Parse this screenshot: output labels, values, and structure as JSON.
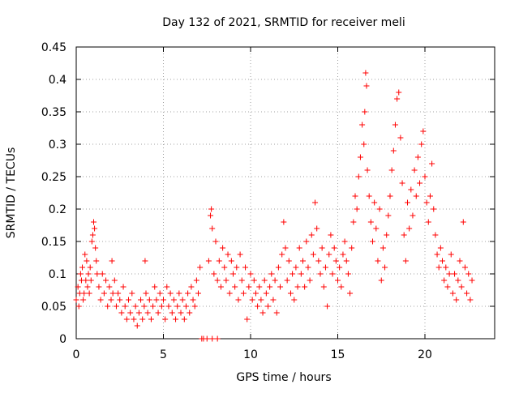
{
  "chart_data": {
    "type": "scatter",
    "title": "Day 132 of 2021, SRMTID for receiver meli",
    "xlabel": "GPS time / hours",
    "ylabel": "SRMTID / TECUs",
    "xlim": [
      0,
      24
    ],
    "ylim": [
      0,
      0.45
    ],
    "x_ticks": [
      0,
      5,
      10,
      15,
      20
    ],
    "x_tick_labels": [
      "0",
      "5",
      "10",
      "15",
      "20"
    ],
    "y_ticks": [
      0,
      0.05,
      0.1,
      0.15,
      0.2,
      0.25,
      0.3,
      0.35,
      0.4,
      0.45
    ],
    "y_tick_labels": [
      "0",
      "0.05",
      "0.1",
      "0.15",
      "0.2",
      "0.25",
      "0.3",
      "0.35",
      "0.4",
      "0.45"
    ],
    "grid": true,
    "marker": "plus",
    "series": [
      {
        "name": "SRMTID",
        "color": "#ff0000",
        "points": [
          [
            0.0,
            0.06
          ],
          [
            0.1,
            0.08
          ],
          [
            0.15,
            0.05
          ],
          [
            0.2,
            0.07
          ],
          [
            0.25,
            0.1
          ],
          [
            0.3,
            0.09
          ],
          [
            0.35,
            0.11
          ],
          [
            0.4,
            0.06
          ],
          [
            0.45,
            0.07
          ],
          [
            0.5,
            0.13
          ],
          [
            0.55,
            0.09
          ],
          [
            0.6,
            0.12
          ],
          [
            0.65,
            0.08
          ],
          [
            0.7,
            0.1
          ],
          [
            0.75,
            0.07
          ],
          [
            0.8,
            0.11
          ],
          [
            0.85,
            0.09
          ],
          [
            0.9,
            0.15
          ],
          [
            0.95,
            0.16
          ],
          [
            1.0,
            0.18
          ],
          [
            1.05,
            0.17
          ],
          [
            1.1,
            0.14
          ],
          [
            1.15,
            0.12
          ],
          [
            1.2,
            0.1
          ],
          [
            1.3,
            0.08
          ],
          [
            1.4,
            0.06
          ],
          [
            1.5,
            0.1
          ],
          [
            1.6,
            0.07
          ],
          [
            1.7,
            0.09
          ],
          [
            1.8,
            0.05
          ],
          [
            1.9,
            0.08
          ],
          [
            2.0,
            0.06
          ],
          [
            2.05,
            0.12
          ],
          [
            2.1,
            0.07
          ],
          [
            2.2,
            0.09
          ],
          [
            2.3,
            0.05
          ],
          [
            2.4,
            0.07
          ],
          [
            2.5,
            0.06
          ],
          [
            2.6,
            0.04
          ],
          [
            2.7,
            0.08
          ],
          [
            2.8,
            0.05
          ],
          [
            2.9,
            0.03
          ],
          [
            3.0,
            0.06
          ],
          [
            3.1,
            0.04
          ],
          [
            3.2,
            0.07
          ],
          [
            3.3,
            0.03
          ],
          [
            3.4,
            0.05
          ],
          [
            3.5,
            0.02
          ],
          [
            3.6,
            0.04
          ],
          [
            3.7,
            0.06
          ],
          [
            3.8,
            0.03
          ],
          [
            3.9,
            0.05
          ],
          [
            3.95,
            0.12
          ],
          [
            4.0,
            0.07
          ],
          [
            4.1,
            0.04
          ],
          [
            4.2,
            0.06
          ],
          [
            4.3,
            0.03
          ],
          [
            4.4,
            0.05
          ],
          [
            4.5,
            0.08
          ],
          [
            4.6,
            0.06
          ],
          [
            4.7,
            0.04
          ],
          [
            4.8,
            0.07
          ],
          [
            4.9,
            0.05
          ],
          [
            5.0,
            0.06
          ],
          [
            5.1,
            0.03
          ],
          [
            5.2,
            0.08
          ],
          [
            5.3,
            0.05
          ],
          [
            5.4,
            0.07
          ],
          [
            5.5,
            0.04
          ],
          [
            5.6,
            0.06
          ],
          [
            5.7,
            0.03
          ],
          [
            5.8,
            0.05
          ],
          [
            5.9,
            0.07
          ],
          [
            6.0,
            0.04
          ],
          [
            6.1,
            0.06
          ],
          [
            6.2,
            0.03
          ],
          [
            6.3,
            0.05
          ],
          [
            6.4,
            0.07
          ],
          [
            6.5,
            0.04
          ],
          [
            6.6,
            0.08
          ],
          [
            6.7,
            0.06
          ],
          [
            6.8,
            0.05
          ],
          [
            6.9,
            0.09
          ],
          [
            7.0,
            0.07
          ],
          [
            7.1,
            0.11
          ],
          [
            7.2,
            0.0
          ],
          [
            7.3,
            0.0
          ],
          [
            7.5,
            0.0
          ],
          [
            7.8,
            0.0
          ],
          [
            8.1,
            0.0
          ],
          [
            7.6,
            0.12
          ],
          [
            7.7,
            0.19
          ],
          [
            7.75,
            0.2
          ],
          [
            7.8,
            0.17
          ],
          [
            7.9,
            0.1
          ],
          [
            8.0,
            0.15
          ],
          [
            8.1,
            0.09
          ],
          [
            8.2,
            0.12
          ],
          [
            8.3,
            0.08
          ],
          [
            8.4,
            0.14
          ],
          [
            8.5,
            0.11
          ],
          [
            8.6,
            0.09
          ],
          [
            8.7,
            0.13
          ],
          [
            8.8,
            0.07
          ],
          [
            8.9,
            0.12
          ],
          [
            9.0,
            0.1
          ],
          [
            9.1,
            0.08
          ],
          [
            9.2,
            0.11
          ],
          [
            9.3,
            0.06
          ],
          [
            9.4,
            0.13
          ],
          [
            9.5,
            0.09
          ],
          [
            9.6,
            0.07
          ],
          [
            9.7,
            0.11
          ],
          [
            9.8,
            0.03
          ],
          [
            9.9,
            0.08
          ],
          [
            10.0,
            0.1
          ],
          [
            10.1,
            0.06
          ],
          [
            10.2,
            0.09
          ],
          [
            10.3,
            0.07
          ],
          [
            10.4,
            0.05
          ],
          [
            10.5,
            0.08
          ],
          [
            10.6,
            0.06
          ],
          [
            10.7,
            0.04
          ],
          [
            10.8,
            0.09
          ],
          [
            10.9,
            0.07
          ],
          [
            11.0,
            0.05
          ],
          [
            11.1,
            0.08
          ],
          [
            11.2,
            0.1
          ],
          [
            11.3,
            0.06
          ],
          [
            11.4,
            0.09
          ],
          [
            11.5,
            0.04
          ],
          [
            11.6,
            0.11
          ],
          [
            11.7,
            0.08
          ],
          [
            11.8,
            0.13
          ],
          [
            11.9,
            0.18
          ],
          [
            12.0,
            0.14
          ],
          [
            12.1,
            0.09
          ],
          [
            12.2,
            0.12
          ],
          [
            12.3,
            0.07
          ],
          [
            12.4,
            0.1
          ],
          [
            12.5,
            0.06
          ],
          [
            12.6,
            0.11
          ],
          [
            12.7,
            0.08
          ],
          [
            12.8,
            0.14
          ],
          [
            12.9,
            0.1
          ],
          [
            13.0,
            0.12
          ],
          [
            13.1,
            0.08
          ],
          [
            13.2,
            0.15
          ],
          [
            13.3,
            0.11
          ],
          [
            13.4,
            0.09
          ],
          [
            13.5,
            0.16
          ],
          [
            13.6,
            0.13
          ],
          [
            13.7,
            0.21
          ],
          [
            13.8,
            0.17
          ],
          [
            13.9,
            0.12
          ],
          [
            14.0,
            0.1
          ],
          [
            14.1,
            0.14
          ],
          [
            14.2,
            0.08
          ],
          [
            14.3,
            0.11
          ],
          [
            14.4,
            0.05
          ],
          [
            14.5,
            0.13
          ],
          [
            14.6,
            0.16
          ],
          [
            14.7,
            0.1
          ],
          [
            14.8,
            0.14
          ],
          [
            14.9,
            0.12
          ],
          [
            15.0,
            0.09
          ],
          [
            15.1,
            0.11
          ],
          [
            15.2,
            0.08
          ],
          [
            15.3,
            0.13
          ],
          [
            15.4,
            0.15
          ],
          [
            15.5,
            0.12
          ],
          [
            15.6,
            0.1
          ],
          [
            15.7,
            0.07
          ],
          [
            15.8,
            0.14
          ],
          [
            15.9,
            0.18
          ],
          [
            16.0,
            0.22
          ],
          [
            16.1,
            0.2
          ],
          [
            16.2,
            0.25
          ],
          [
            16.3,
            0.28
          ],
          [
            16.4,
            0.33
          ],
          [
            16.5,
            0.3
          ],
          [
            16.55,
            0.35
          ],
          [
            16.6,
            0.41
          ],
          [
            16.65,
            0.39
          ],
          [
            16.7,
            0.26
          ],
          [
            16.8,
            0.22
          ],
          [
            16.9,
            0.18
          ],
          [
            17.0,
            0.15
          ],
          [
            17.1,
            0.21
          ],
          [
            17.2,
            0.17
          ],
          [
            17.3,
            0.12
          ],
          [
            17.4,
            0.2
          ],
          [
            17.5,
            0.09
          ],
          [
            17.6,
            0.14
          ],
          [
            17.7,
            0.11
          ],
          [
            17.8,
            0.16
          ],
          [
            17.9,
            0.19
          ],
          [
            18.0,
            0.22
          ],
          [
            18.1,
            0.26
          ],
          [
            18.2,
            0.29
          ],
          [
            18.3,
            0.33
          ],
          [
            18.4,
            0.37
          ],
          [
            18.5,
            0.38
          ],
          [
            18.6,
            0.31
          ],
          [
            18.7,
            0.24
          ],
          [
            18.8,
            0.16
          ],
          [
            18.9,
            0.12
          ],
          [
            19.0,
            0.21
          ],
          [
            19.1,
            0.17
          ],
          [
            19.2,
            0.23
          ],
          [
            19.3,
            0.19
          ],
          [
            19.4,
            0.26
          ],
          [
            19.5,
            0.22
          ],
          [
            19.6,
            0.28
          ],
          [
            19.7,
            0.24
          ],
          [
            19.8,
            0.3
          ],
          [
            19.9,
            0.32
          ],
          [
            20.0,
            0.25
          ],
          [
            20.1,
            0.21
          ],
          [
            20.2,
            0.18
          ],
          [
            20.3,
            0.22
          ],
          [
            20.4,
            0.27
          ],
          [
            20.5,
            0.2
          ],
          [
            20.6,
            0.16
          ],
          [
            20.7,
            0.13
          ],
          [
            20.8,
            0.11
          ],
          [
            20.9,
            0.14
          ],
          [
            21.0,
            0.12
          ],
          [
            21.1,
            0.09
          ],
          [
            21.2,
            0.11
          ],
          [
            21.3,
            0.08
          ],
          [
            21.4,
            0.1
          ],
          [
            21.5,
            0.13
          ],
          [
            21.6,
            0.07
          ],
          [
            21.7,
            0.1
          ],
          [
            21.8,
            0.06
          ],
          [
            21.9,
            0.09
          ],
          [
            22.0,
            0.12
          ],
          [
            22.1,
            0.08
          ],
          [
            22.2,
            0.18
          ],
          [
            22.3,
            0.11
          ],
          [
            22.4,
            0.07
          ],
          [
            22.5,
            0.1
          ],
          [
            22.6,
            0.06
          ],
          [
            22.7,
            0.09
          ]
        ]
      }
    ]
  }
}
